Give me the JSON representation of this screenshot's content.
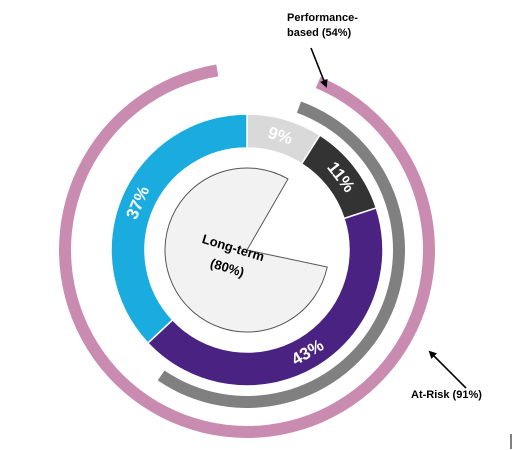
{
  "chart_data": {
    "type": "donut",
    "segments": [
      {
        "label": "9%",
        "value": 9,
        "color": "#d9d9d9",
        "label_color": "#ffffff"
      },
      {
        "label": "11%",
        "value": 11,
        "color": "#333333",
        "label_color": "#ffffff"
      },
      {
        "label": "43%",
        "value": 43,
        "color": "#4a2382",
        "label_color": "#ffffff"
      },
      {
        "label": "37%",
        "value": 37,
        "color": "#1aabdf",
        "label_color": "#ffffff"
      }
    ],
    "center_pie": {
      "label_line1": "Long-term",
      "label_line2": "(80%)",
      "value": 80,
      "fill": "#f2f2f2",
      "stroke": "#555555"
    },
    "outer_arcs": [
      {
        "name": "Performance-based",
        "value": 54,
        "color": "#808080",
        "annotation_line1": "Performance-",
        "annotation_line2": "based (54%)"
      },
      {
        "name": "At-Risk",
        "value": 91,
        "color": "#c98bb0",
        "annotation_line1": "At-Risk (91%)",
        "annotation_line2": ""
      }
    ]
  }
}
